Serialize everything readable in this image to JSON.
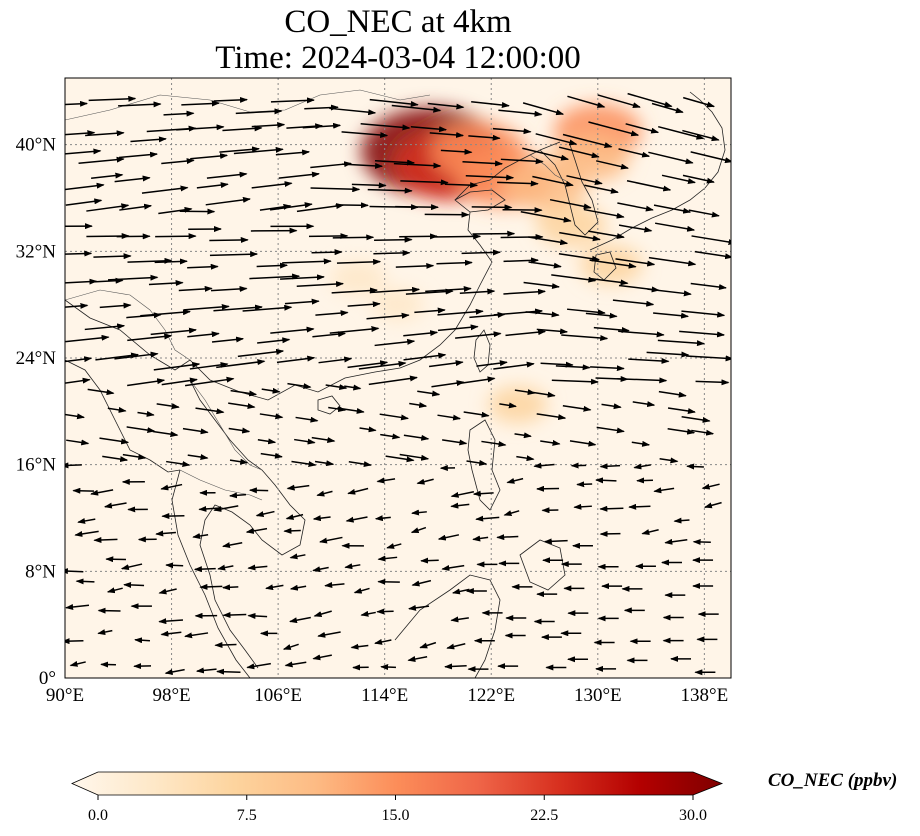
{
  "map": {
    "title_line1": "CO_NEC at 4km",
    "title_line2": "Time: 2024-03-04 12:00:00",
    "lon_ticks": [
      "90°E",
      "98°E",
      "106°E",
      "114°E",
      "122°E",
      "130°E",
      "138°E"
    ],
    "lat_ticks": [
      "0°",
      "8°N",
      "16°N",
      "24°N",
      "32°N",
      "40°N"
    ],
    "extent": {
      "lon_min": 90,
      "lon_max": 140,
      "lat_min": 0,
      "lat_max": 45
    },
    "gridlines": true,
    "colormap": "OrRd",
    "colorbar": {
      "label": "CO_NEC (ppbv)",
      "ticks": [
        "0.0",
        "7.5",
        "15.0",
        "22.5",
        "30.0"
      ],
      "min": 0,
      "max": 30,
      "extend": "both",
      "colors": [
        "#fff7ec",
        "#fee8c8",
        "#fdd49e",
        "#fdbb84",
        "#fc8d59",
        "#ef6548",
        "#d7301f",
        "#b30000",
        "#7f0000"
      ]
    }
  },
  "chart_data": {
    "type": "heatmap",
    "variable": "CO_NEC",
    "units": "ppbv",
    "plume_regions": [
      {
        "lon": 117.5,
        "lat": 39.5,
        "value": 29
      },
      {
        "lon": 119,
        "lat": 38.5,
        "value": 22
      },
      {
        "lon": 121,
        "lat": 39.5,
        "value": 16
      },
      {
        "lon": 123,
        "lat": 37.5,
        "value": 16
      },
      {
        "lon": 126,
        "lat": 37,
        "value": 13
      },
      {
        "lon": 130,
        "lat": 41,
        "value": 14
      },
      {
        "lon": 129.5,
        "lat": 39,
        "value": 11
      },
      {
        "lon": 128,
        "lat": 34,
        "value": 9
      },
      {
        "lon": 131,
        "lat": 31,
        "value": 7
      },
      {
        "lon": 124,
        "lat": 20.5,
        "value": 6
      },
      {
        "lon": 112,
        "lat": 30,
        "value": 5
      },
      {
        "lon": 115,
        "lat": 28,
        "value": 4
      }
    ]
  }
}
